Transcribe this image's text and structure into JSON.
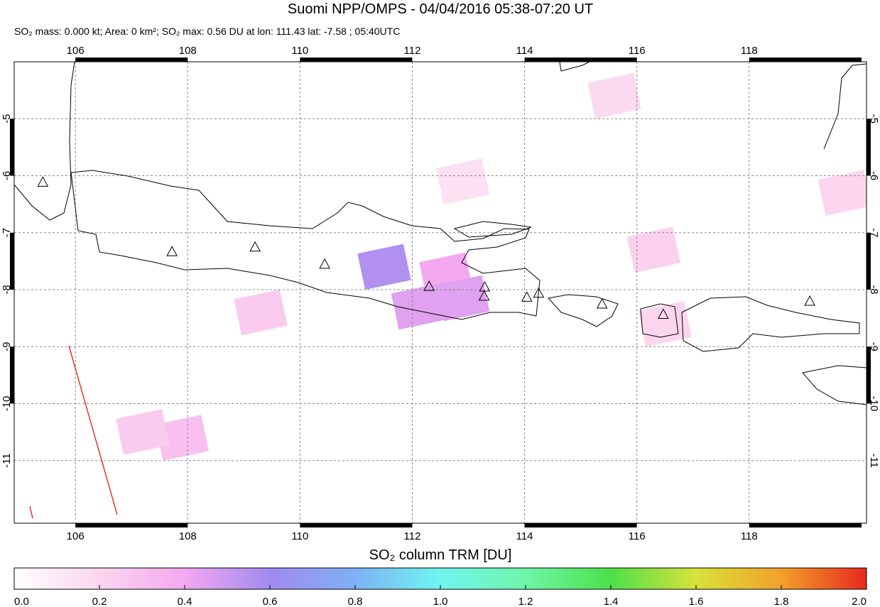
{
  "title": "Suomi NPP/OMPS - 04/04/2016 05:38-07:20 UT",
  "subtitle": "SO₂ mass: 0.000 kt; Area: 0 km²; SO₂ max: 0.56 DU at lon: 111.43 lat: -7.58 ; 05:40UTC",
  "map": {
    "lon_range": [
      104.91,
      120.09
    ],
    "lat_range": [
      -12.1,
      -4.0
    ],
    "xticks": [
      106,
      108,
      110,
      112,
      114,
      116,
      118
    ],
    "yticks": [
      -5,
      -6,
      -7,
      -8,
      -9,
      -10,
      -11
    ],
    "volcanoes": [
      {
        "lon": 105.42,
        "lat": -6.11
      },
      {
        "lon": 107.72,
        "lat": -7.33
      },
      {
        "lon": 109.2,
        "lat": -7.25
      },
      {
        "lon": 110.44,
        "lat": -7.55
      },
      {
        "lon": 112.3,
        "lat": -7.94
      },
      {
        "lon": 113.29,
        "lat": -7.95
      },
      {
        "lon": 113.28,
        "lat": -8.11
      },
      {
        "lon": 114.04,
        "lat": -8.13
      },
      {
        "lon": 114.25,
        "lat": -8.06
      },
      {
        "lon": 115.38,
        "lat": -8.25
      },
      {
        "lon": 116.47,
        "lat": -8.43
      },
      {
        "lon": 119.08,
        "lat": -8.2
      }
    ],
    "so2_pixels": [
      {
        "lon": 111.5,
        "lat": -7.6,
        "value": 0.56
      },
      {
        "lon": 112.6,
        "lat": -7.75,
        "value": 0.4
      },
      {
        "lon": 112.9,
        "lat": -8.15,
        "value": 0.45
      },
      {
        "lon": 112.1,
        "lat": -8.3,
        "value": 0.45
      },
      {
        "lon": 109.3,
        "lat": -8.4,
        "value": 0.25
      },
      {
        "lon": 107.9,
        "lat": -10.6,
        "value": 0.3
      },
      {
        "lon": 116.5,
        "lat": -8.6,
        "value": 0.2
      },
      {
        "lon": 116.3,
        "lat": -7.3,
        "value": 0.22
      },
      {
        "lon": 112.9,
        "lat": -6.1,
        "value": 0.15
      },
      {
        "lon": 115.6,
        "lat": -4.6,
        "value": 0.18
      },
      {
        "lon": 107.2,
        "lat": -10.5,
        "value": 0.25
      },
      {
        "lon": 119.7,
        "lat": -6.3,
        "value": 0.2
      }
    ]
  },
  "colorbar": {
    "label": "SO₂ column TRM [DU]",
    "range": [
      0,
      2
    ],
    "ticks": [
      {
        "value": 0,
        "label": "0.0"
      },
      {
        "value": 0.2,
        "label": "0.2"
      },
      {
        "value": 0.4,
        "label": "0.4"
      },
      {
        "value": 0.6,
        "label": "0.6"
      },
      {
        "value": 0.8,
        "label": "0.8"
      },
      {
        "value": 1,
        "label": "1.0"
      },
      {
        "value": 1.2,
        "label": "1.2"
      },
      {
        "value": 1.4,
        "label": "1.4"
      },
      {
        "value": 1.6,
        "label": "1.6"
      },
      {
        "value": 1.8,
        "label": "1.8"
      },
      {
        "value": 2,
        "label": "2.0"
      }
    ]
  }
}
